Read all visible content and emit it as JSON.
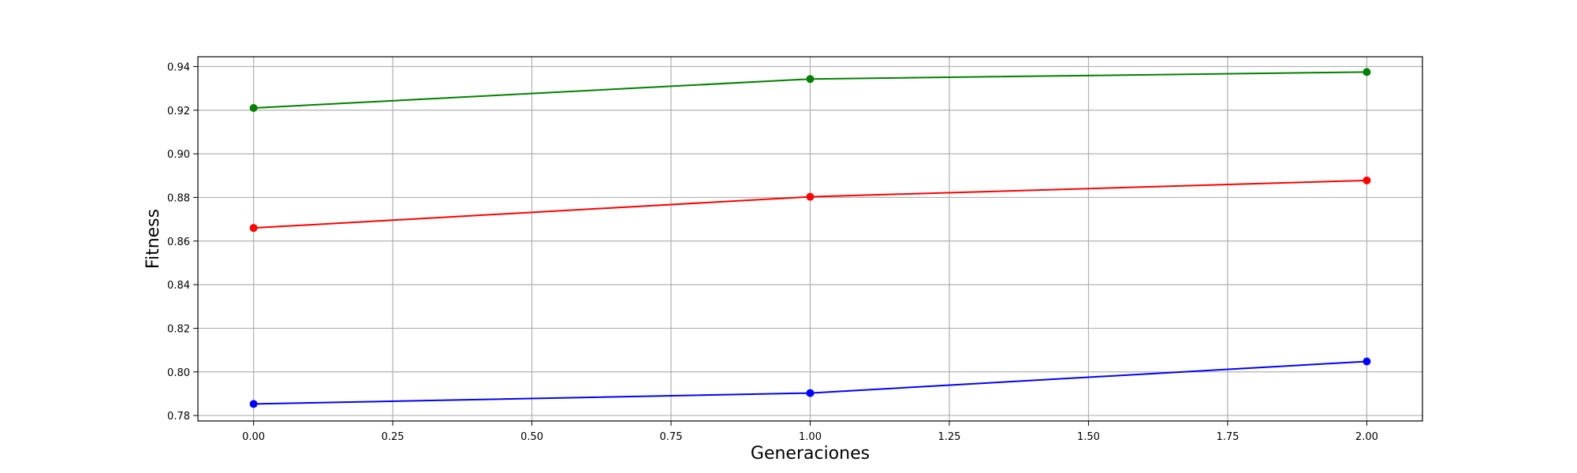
{
  "chart_data": {
    "type": "line",
    "title": "",
    "xlabel": "Generaciones",
    "ylabel": "Fitness",
    "xlim": [
      -0.1,
      2.1
    ],
    "ylim": [
      0.7775,
      0.9445
    ],
    "x_ticks": [
      "0.00",
      "0.25",
      "0.50",
      "0.75",
      "1.00",
      "1.25",
      "1.50",
      "1.75",
      "2.00"
    ],
    "y_ticks": [
      "0.78",
      "0.80",
      "0.82",
      "0.84",
      "0.86",
      "0.88",
      "0.90",
      "0.92",
      "0.94"
    ],
    "grid": true,
    "x": [
      0,
      1,
      2
    ],
    "series": [
      {
        "color": "#008000",
        "values": [
          0.921,
          0.9343,
          0.9375
        ]
      },
      {
        "color": "#ff0000",
        "values": [
          0.866,
          0.8803,
          0.8878
        ]
      },
      {
        "color": "#0000ff",
        "values": [
          0.7853,
          0.7903,
          0.8048
        ]
      }
    ]
  }
}
